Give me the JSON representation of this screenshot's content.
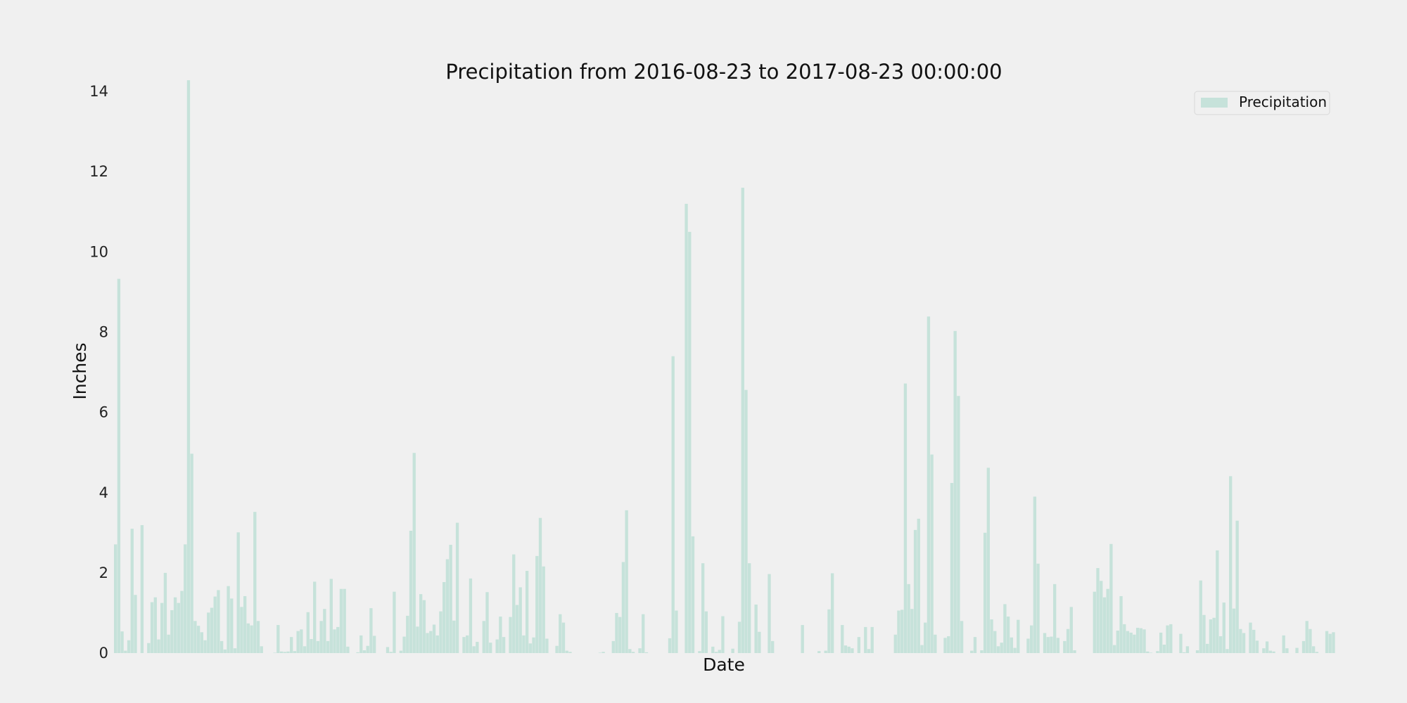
{
  "chart_data": {
    "type": "bar",
    "title": "Precipitation from 2016-08-23 to 2017-08-23 00:00:00",
    "xlabel": "Date",
    "ylabel": "Inches",
    "ylim": [
      0,
      14.3
    ],
    "yticks": [
      0,
      2,
      4,
      6,
      8,
      10,
      12,
      14
    ],
    "grid": false,
    "legend_position": "top-right",
    "series": [
      {
        "name": "Precipitation",
        "color": "#c6e2da",
        "values": [
          2.71,
          9.33,
          0.54,
          0.06,
          0.32,
          3.1,
          1.45,
          0.0,
          3.19,
          0.0,
          0.25,
          1.27,
          1.39,
          0.34,
          1.25,
          2.0,
          0.46,
          1.07,
          1.39,
          1.25,
          1.55,
          2.71,
          14.28,
          4.97,
          0.8,
          0.68,
          0.52,
          0.32,
          1.01,
          1.13,
          1.41,
          1.57,
          0.3,
          0.09,
          1.67,
          1.36,
          0.12,
          3.01,
          1.15,
          1.42,
          0.74,
          0.69,
          3.52,
          0.8,
          0.17,
          0.0,
          0.0,
          0.0,
          0.01,
          0.7,
          0.04,
          0.03,
          0.04,
          0.4,
          0.05,
          0.55,
          0.59,
          0.17,
          1.02,
          0.35,
          1.78,
          0.3,
          0.8,
          1.1,
          0.3,
          1.85,
          0.59,
          0.65,
          1.6,
          1.6,
          0.16,
          0.0,
          0.0,
          0.02,
          0.44,
          0.07,
          0.18,
          1.12,
          0.43,
          0.0,
          0.0,
          0.0,
          0.15,
          0.03,
          1.53,
          0.0,
          0.06,
          0.41,
          0.93,
          3.05,
          4.99,
          0.66,
          1.47,
          1.32,
          0.5,
          0.55,
          0.71,
          0.44,
          1.04,
          1.77,
          2.34,
          2.7,
          0.81,
          3.25,
          0.0,
          0.4,
          0.44,
          1.86,
          0.17,
          0.28,
          0.0,
          0.8,
          1.52,
          0.26,
          0.0,
          0.34,
          0.91,
          0.4,
          0.0,
          0.9,
          2.46,
          1.2,
          1.64,
          0.44,
          2.05,
          0.24,
          0.39,
          2.42,
          3.37,
          2.16,
          0.36,
          0.0,
          0.0,
          0.18,
          0.97,
          0.76,
          0.06,
          0.03,
          0.0,
          0.0,
          0.0,
          0.0,
          0.0,
          0.0,
          0.0,
          0.0,
          0.01,
          0.03,
          0.0,
          0.0,
          0.3,
          1.0,
          0.9,
          2.27,
          3.56,
          0.1,
          0.03,
          0.0,
          0.12,
          0.97,
          0.02,
          0.0,
          0.0,
          0.0,
          0.0,
          0.0,
          0.0,
          0.37,
          7.4,
          1.06,
          0.0,
          0.0,
          11.2,
          10.5,
          2.91,
          0.0,
          0.05,
          2.24,
          1.04,
          0.0,
          0.16,
          0.03,
          0.08,
          0.92,
          0.0,
          0.0,
          0.11,
          0.0,
          0.78,
          11.6,
          6.56,
          2.24,
          0.0,
          1.21,
          0.53,
          0.0,
          0.0,
          1.97,
          0.3,
          0.0,
          0.0,
          0.0,
          0.0,
          0.0,
          0.0,
          0.0,
          0.0,
          0.7,
          0.0,
          0.0,
          0.0,
          0.0,
          0.05,
          0.0,
          0.06,
          1.09,
          1.99,
          0.0,
          0.0,
          0.7,
          0.19,
          0.16,
          0.12,
          0.0,
          0.4,
          0.0,
          0.65,
          0.1,
          0.65,
          0.0,
          0.0,
          0.0,
          0.0,
          0.0,
          0.0,
          0.46,
          1.06,
          1.08,
          6.72,
          1.72,
          1.1,
          3.07,
          3.35,
          0.2,
          0.76,
          8.39,
          4.95,
          0.46,
          0.0,
          0.0,
          0.38,
          0.42,
          4.24,
          8.03,
          6.41,
          0.8,
          0.0,
          0.0,
          0.06,
          0.4,
          0.0,
          0.07,
          3.0,
          4.62,
          0.84,
          0.55,
          0.17,
          0.26,
          1.22,
          0.91,
          0.39,
          0.13,
          0.83,
          0.0,
          0.0,
          0.36,
          0.69,
          3.9,
          2.23,
          0.0,
          0.5,
          0.4,
          0.41,
          1.72,
          0.38,
          0.0,
          0.3,
          0.6,
          1.15,
          0.07,
          0.0,
          0.0,
          0.0,
          0.0,
          0.0,
          1.53,
          2.12,
          1.8,
          1.39,
          1.6,
          2.72,
          0.2,
          0.56,
          1.42,
          0.72,
          0.55,
          0.51,
          0.46,
          0.63,
          0.62,
          0.59,
          0.04,
          0.01,
          0.0,
          0.05,
          0.51,
          0.21,
          0.69,
          0.72,
          0.0,
          0.0,
          0.48,
          0.02,
          0.17,
          0.0,
          0.0,
          0.07,
          1.81,
          0.95,
          0.23,
          0.84,
          0.88,
          2.56,
          0.42,
          1.26,
          0.1,
          4.41,
          1.11,
          3.3,
          0.6,
          0.5,
          0.0,
          0.76,
          0.58,
          0.31,
          0.0,
          0.12,
          0.29,
          0.06,
          0.04,
          0.0,
          0.0,
          0.44,
          0.12,
          0.0,
          0.0,
          0.13,
          0.0,
          0.3,
          0.8,
          0.6,
          0.17,
          0.03,
          0.0,
          0.0,
          0.55,
          0.48,
          0.52
        ]
      }
    ]
  }
}
